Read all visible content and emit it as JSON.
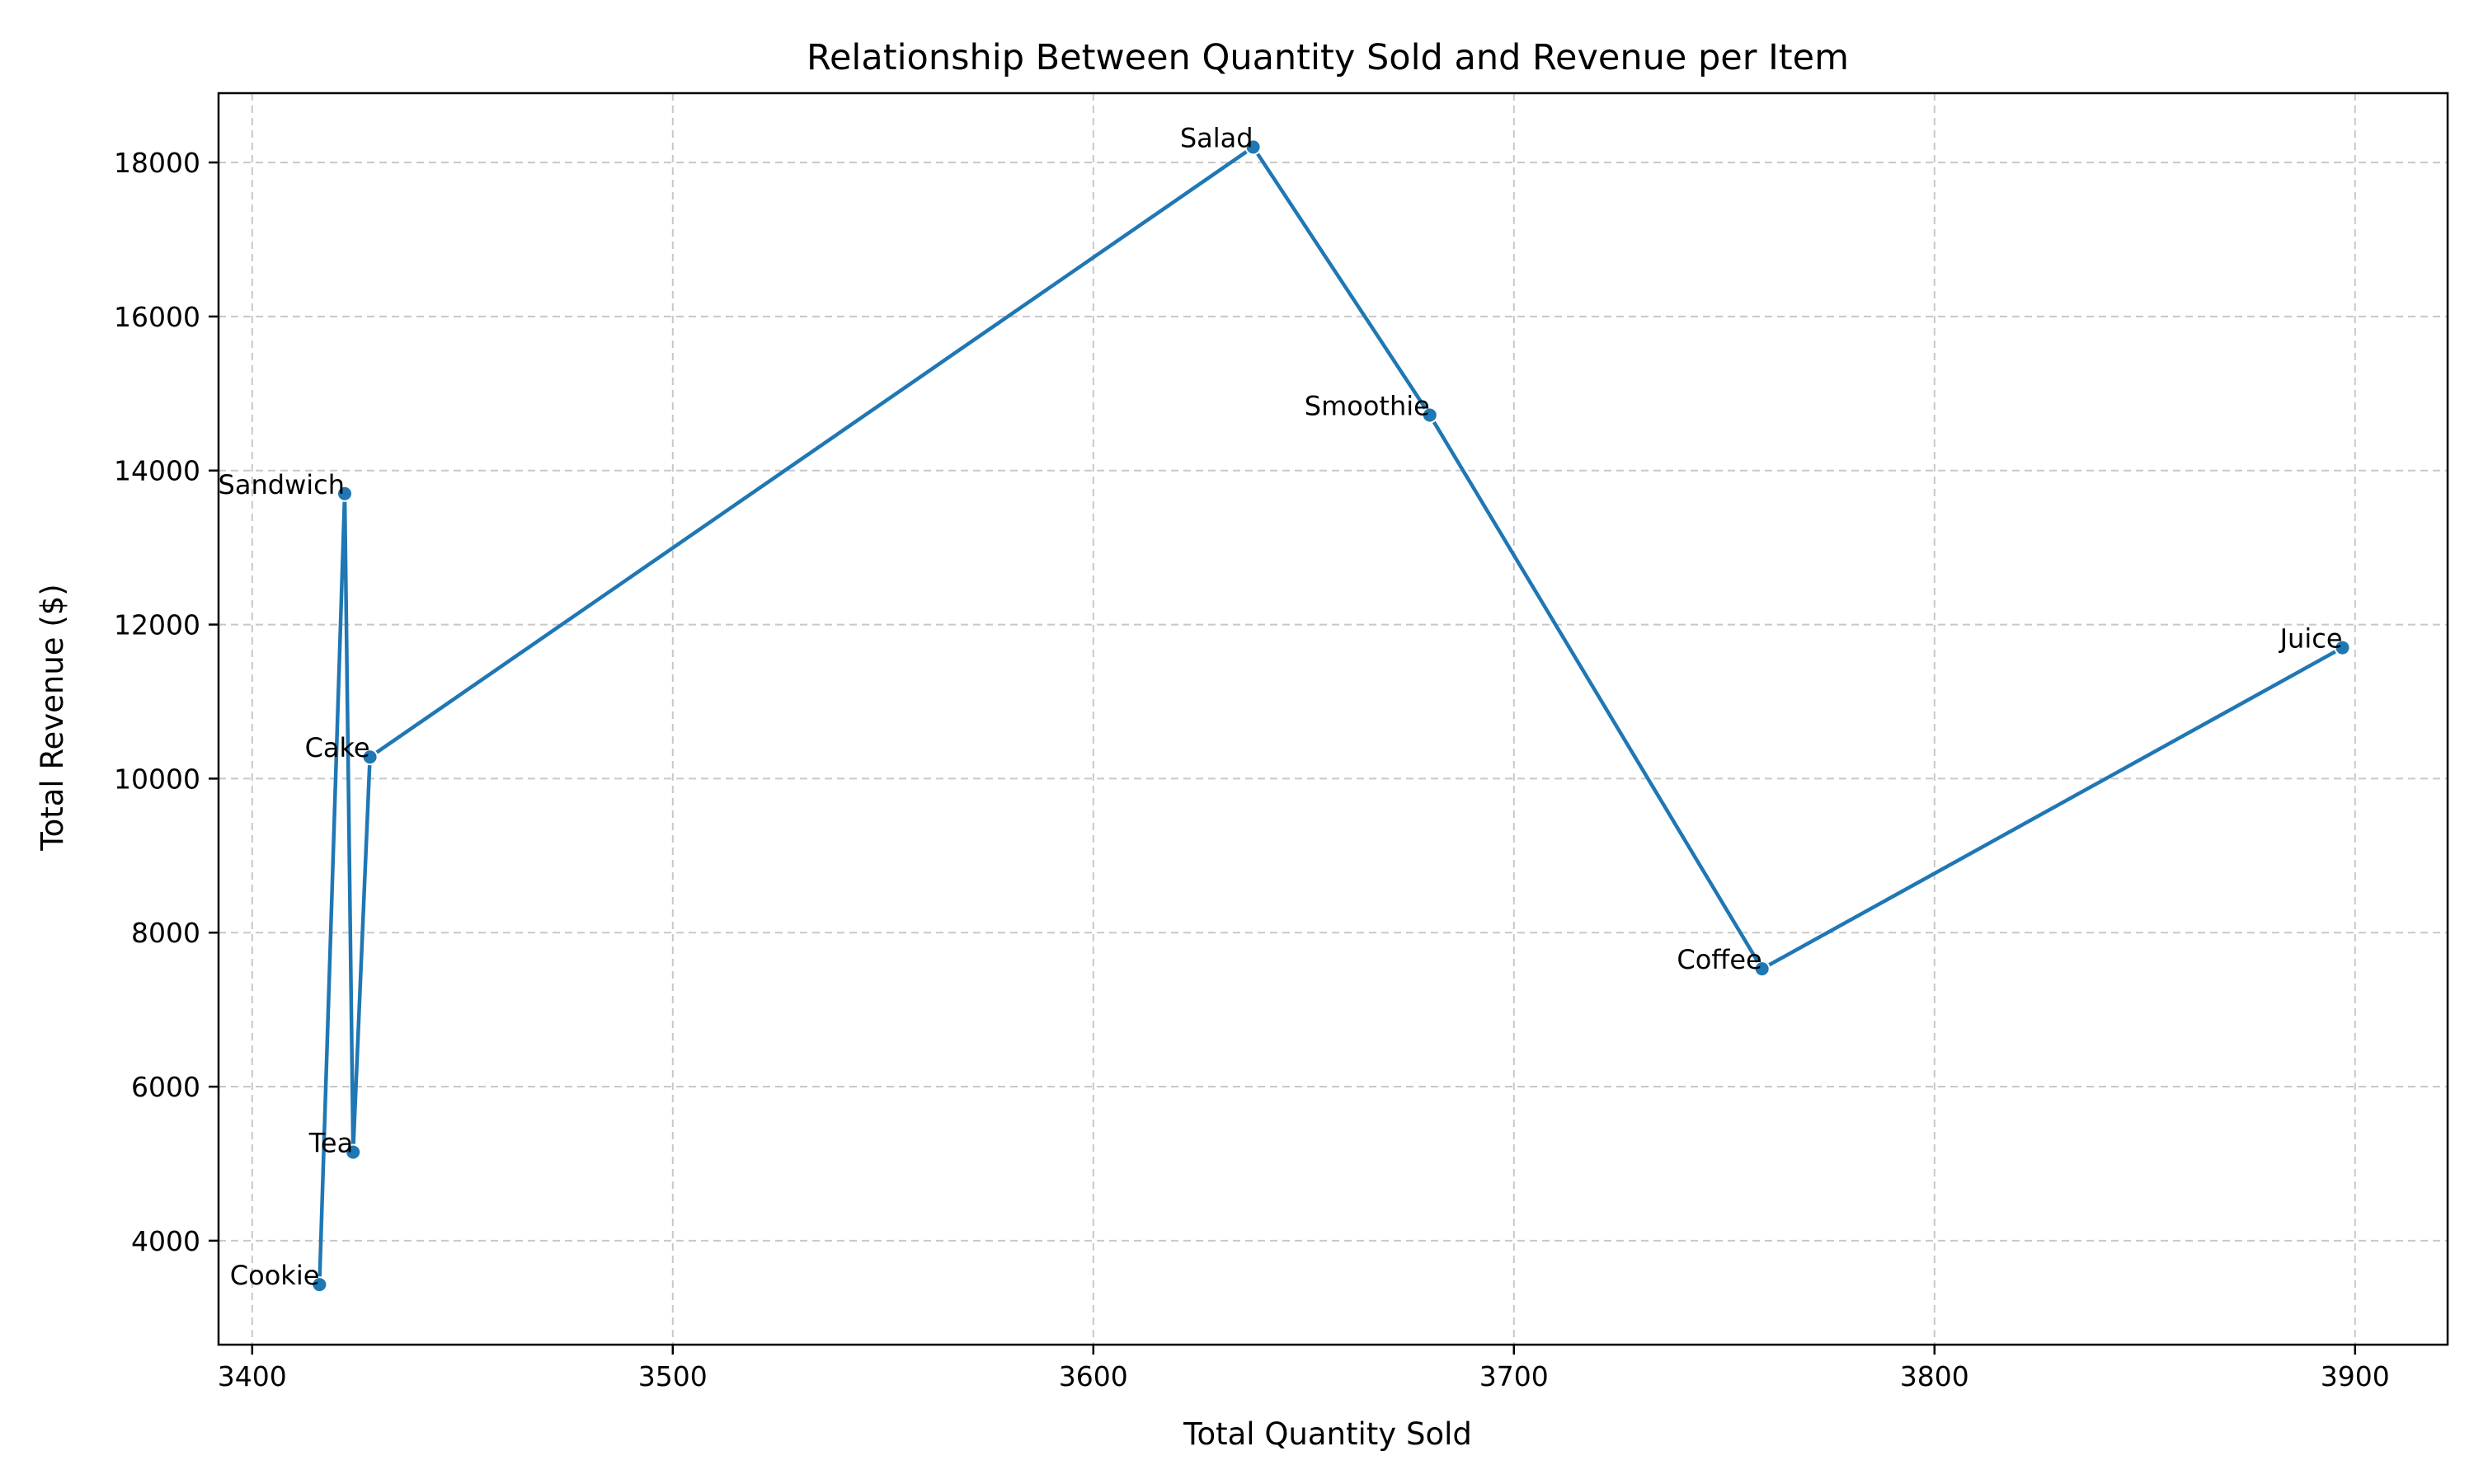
{
  "chart_data": {
    "type": "line",
    "title": "Relationship Between Quantity Sold and Revenue per Item",
    "xlabel": "Total Quantity Sold",
    "ylabel": "Total Revenue ($)",
    "xlim": [
      3392,
      3922
    ],
    "ylim": [
      2650,
      18900
    ],
    "xticks": [
      3400,
      3500,
      3600,
      3700,
      3800,
      3900
    ],
    "yticks": [
      4000,
      6000,
      8000,
      10000,
      12000,
      14000,
      16000,
      18000
    ],
    "grid": true,
    "color": "#1f77b4",
    "points": [
      {
        "label": "Cookie",
        "x": 3416,
        "y": 3430
      },
      {
        "label": "Sandwich",
        "x": 3422,
        "y": 13700
      },
      {
        "label": "Tea",
        "x": 3424,
        "y": 5150
      },
      {
        "label": "Cake",
        "x": 3428,
        "y": 10280
      },
      {
        "label": "Salad",
        "x": 3638,
        "y": 18200
      },
      {
        "label": "Smoothie",
        "x": 3680,
        "y": 14720
      },
      {
        "label": "Coffee",
        "x": 3759,
        "y": 7530
      },
      {
        "label": "Juice",
        "x": 3897,
        "y": 11700
      }
    ]
  }
}
